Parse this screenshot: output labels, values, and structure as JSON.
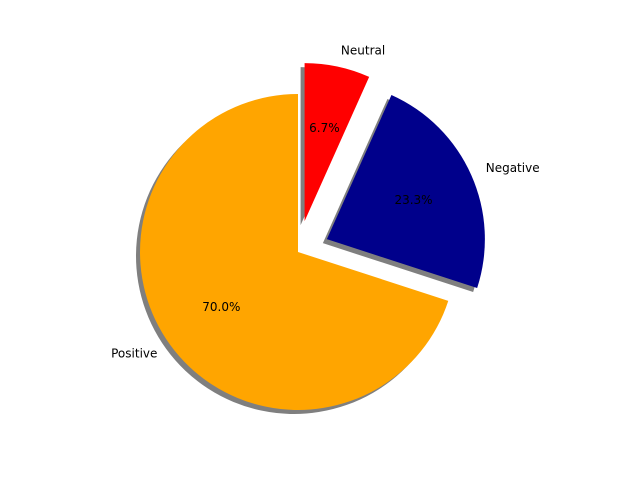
{
  "chart_data": {
    "type": "pie",
    "title": "",
    "slices": [
      {
        "label": "Positive",
        "value": 70.0,
        "pct_label": "70.0%",
        "color": "#FFA500",
        "exploded": false
      },
      {
        "label": "Negative",
        "value": 23.3,
        "pct_label": "23.3%",
        "color": "#00008B",
        "exploded": true
      },
      {
        "label": "Neutral",
        "value": 6.7,
        "pct_label": "6.7%",
        "color": "#FF0000",
        "exploded": true
      }
    ],
    "start_angle_deg": 90,
    "direction": "counterclockwise",
    "shadow": true
  }
}
